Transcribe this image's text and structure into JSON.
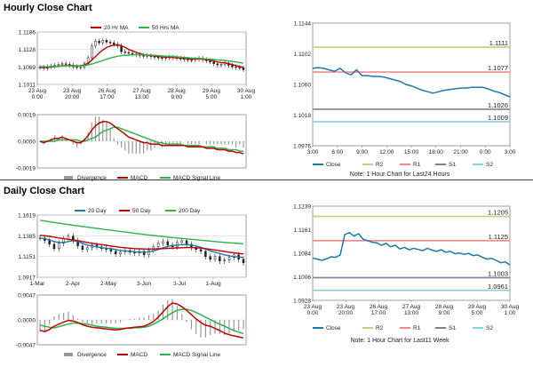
{
  "hourly_title": "Hourly Close Chart",
  "daily_title": "Daily Close Chart",
  "colors": {
    "close": "#1f77b4",
    "ma20": "#c00000",
    "ma50": "#2db34a",
    "ma200": "#2db34a",
    "macd": "#c00000",
    "signal": "#2db34a",
    "divergence": "#999999",
    "r2": "#b6d47a",
    "r1": "#f08b8b",
    "s1": "#7f7f9f",
    "s2": "#7fd6d6"
  },
  "chart_data": [
    {
      "id": "hourly-price",
      "type": "candlestick",
      "legend": [
        "20 Hr MA",
        "50 Hrs MA"
      ],
      "yticks": [
        1.1186,
        1.1128,
        1.1069,
        1.1011
      ],
      "ylim": [
        1.1011,
        1.1186
      ],
      "xtick_labels": [
        [
          "23 Aug",
          "0:00"
        ],
        [
          "23 Aug",
          "20:00"
        ],
        [
          "26 Aug",
          "17:00"
        ],
        [
          "27 Aug",
          "13:00"
        ],
        [
          "28 Aug",
          "9:00"
        ],
        [
          "29 Aug",
          "5:00"
        ],
        [
          "30 Aug",
          "1:00"
        ]
      ],
      "close": [
        1.1068,
        1.1065,
        1.107,
        1.1072,
        1.1075,
        1.1078,
        1.108,
        1.1078,
        1.1075,
        1.107,
        1.1068,
        1.1069,
        1.108,
        1.11,
        1.114,
        1.1155,
        1.115,
        1.1158,
        1.1152,
        1.115,
        1.1145,
        1.114,
        1.112,
        1.1118,
        1.1115,
        1.1112,
        1.111,
        1.1108,
        1.1105,
        1.1107,
        1.1104,
        1.1102,
        1.11,
        1.1098,
        1.11,
        1.1102,
        1.11,
        1.1098,
        1.1097,
        1.1095,
        1.1093,
        1.1092,
        1.1095,
        1.1098,
        1.1094,
        1.109,
        1.1086,
        1.108,
        1.1076,
        1.1078,
        1.1082,
        1.1075,
        1.107,
        1.1068,
        1.1066,
        1.106
      ],
      "ma20": [
        1.1068,
        1.1067,
        1.1068,
        1.1069,
        1.107,
        1.1072,
        1.1073,
        1.1074,
        1.1074,
        1.1074,
        1.1073,
        1.1073,
        1.1076,
        1.1082,
        1.1092,
        1.1104,
        1.1116,
        1.1126,
        1.1134,
        1.1139,
        1.1142,
        1.1143,
        1.114,
        1.1135,
        1.1128,
        1.1123,
        1.1118,
        1.1114,
        1.1111,
        1.1109,
        1.1107,
        1.1106,
        1.1104,
        1.1103,
        1.1102,
        1.1102,
        1.1101,
        1.11,
        1.1099,
        1.1098,
        1.1097,
        1.1096,
        1.1096,
        1.1096,
        1.1095,
        1.1094,
        1.1092,
        1.1089,
        1.1086,
        1.1084,
        1.1083,
        1.108,
        1.1077,
        1.1074,
        1.1071,
        1.1067
      ],
      "ma50": [
        1.107,
        1.107,
        1.107,
        1.1071,
        1.1071,
        1.1072,
        1.1072,
        1.1073,
        1.1073,
        1.1073,
        1.1073,
        1.1073,
        1.1074,
        1.1076,
        1.1079,
        1.1083,
        1.1087,
        1.1091,
        1.1095,
        1.1099,
        1.1102,
        1.1105,
        1.1107,
        1.1108,
        1.1109,
        1.111,
        1.111,
        1.111,
        1.111,
        1.1109,
        1.1109,
        1.1108,
        1.1107,
        1.1106,
        1.1105,
        1.1105,
        1.1104,
        1.1103,
        1.1102,
        1.1101,
        1.11,
        1.1099,
        1.1098,
        1.1098,
        1.1097,
        1.1096,
        1.1095,
        1.1094,
        1.1093,
        1.1092,
        1.1091,
        1.1089,
        1.1088,
        1.1086,
        1.1084,
        1.1082
      ]
    },
    {
      "id": "hourly-macd",
      "type": "macd",
      "legend": [
        "Divergence",
        "MACD",
        "MACD Signal Line"
      ],
      "yticks": [
        0.0019,
        0.0,
        -0.0019
      ],
      "yticks_labels": [
        "0.0019",
        "0.0000",
        "-0.0019"
      ],
      "ylim": [
        -0.0019,
        0.0019
      ],
      "macd": [
        0.0,
        -0.0001,
        0.0,
        0.0001,
        0.0002,
        0.0002,
        0.0003,
        0.0002,
        0.0001,
        0.0,
        -0.0001,
        -0.0001,
        0.0001,
        0.0004,
        0.0008,
        0.0011,
        0.0013,
        0.0014,
        0.0014,
        0.0013,
        0.0011,
        0.0009,
        0.0007,
        0.0005,
        0.0003,
        0.0002,
        0.0001,
        0.0,
        -0.0001,
        -0.0001,
        -0.0002,
        -0.0002,
        -0.0002,
        -0.0003,
        -0.0003,
        -0.0003,
        -0.0003,
        -0.0003,
        -0.0003,
        -0.0003,
        -0.0004,
        -0.0004,
        -0.0004,
        -0.0004,
        -0.0004,
        -0.0005,
        -0.0005,
        -0.0005,
        -0.0006,
        -0.0006,
        -0.0006,
        -0.0007,
        -0.0007,
        -0.0008,
        -0.0008,
        -0.0009
      ],
      "signal": [
        0.0,
        0.0,
        0.0,
        0.0,
        0.0,
        0.0001,
        0.0001,
        0.0001,
        0.0001,
        0.0001,
        0.0001,
        0.0,
        0.0,
        0.0001,
        0.0002,
        0.0003,
        0.0005,
        0.0007,
        0.0008,
        0.0009,
        0.001,
        0.001,
        0.0009,
        0.0008,
        0.0007,
        0.0006,
        0.0005,
        0.0004,
        0.0003,
        0.0002,
        0.0001,
        0.0,
        -0.0001,
        -0.0001,
        -0.0002,
        -0.0002,
        -0.0002,
        -0.0002,
        -0.0002,
        -0.0003,
        -0.0003,
        -0.0003,
        -0.0003,
        -0.0003,
        -0.0004,
        -0.0004,
        -0.0004,
        -0.0004,
        -0.0005,
        -0.0005,
        -0.0005,
        -0.0006,
        -0.0006,
        -0.0006,
        -0.0007,
        -0.0007
      ]
    },
    {
      "id": "hourly-levels",
      "type": "line",
      "yticks": [
        1.1144,
        1.1102,
        1.106,
        1.1018,
        1.0976
      ],
      "ylim": [
        1.0976,
        1.1144
      ],
      "xtick_labels": [
        "3:00",
        "6:00",
        "9:00",
        "12:00",
        "15:00",
        "18:00",
        "21:00",
        "0:00",
        "3:00"
      ],
      "close": [
        1.1082,
        1.1083,
        1.1082,
        1.108,
        1.1078,
        1.1082,
        1.1076,
        1.1073,
        1.108,
        1.1072,
        1.1072,
        1.1071,
        1.1071,
        1.107,
        1.1068,
        1.1066,
        1.1064,
        1.106,
        1.1058,
        1.1055,
        1.1052,
        1.105,
        1.1048,
        1.105,
        1.1052,
        1.1053,
        1.1054,
        1.1055,
        1.1055,
        1.1056,
        1.1056,
        1.1056,
        1.1054,
        1.1051,
        1.1049,
        1.1046,
        1.1043
      ],
      "levels": [
        {
          "name": "R2",
          "value": 1.1111,
          "label": "1.1111"
        },
        {
          "name": "R1",
          "value": 1.1077,
          "label": "1.1077"
        },
        {
          "name": "S1",
          "value": 1.1026,
          "label": "1.1026"
        },
        {
          "name": "S2",
          "value": 1.1009,
          "label": "1.1009"
        }
      ],
      "legend": [
        "Close",
        "R2",
        "R1",
        "S1",
        "S2"
      ],
      "note": "Note: 1 Hour Chart for Last24 Hours"
    },
    {
      "id": "daily-price",
      "type": "candlestick",
      "legend": [
        "20 Day",
        "50 Day",
        "200 Day"
      ],
      "yticks": [
        1.1619,
        1.1385,
        1.1151,
        1.0917
      ],
      "ylim": [
        1.0917,
        1.1619
      ],
      "xtick_labels": [
        "1-Mar",
        "2-Apr",
        "2-May",
        "3-Jun",
        "3-Jul",
        "1-Aug"
      ],
      "close": [
        1.136,
        1.133,
        1.129,
        1.124,
        1.13,
        1.135,
        1.138,
        1.133,
        1.127,
        1.123,
        1.125,
        1.128,
        1.126,
        1.124,
        1.123,
        1.121,
        1.118,
        1.12,
        1.122,
        1.12,
        1.119,
        1.121,
        1.117,
        1.122,
        1.126,
        1.13,
        1.132,
        1.128,
        1.126,
        1.131,
        1.133,
        1.129,
        1.125,
        1.123,
        1.121,
        1.115,
        1.112,
        1.115,
        1.11,
        1.111,
        1.114,
        1.117,
        1.112,
        1.108
      ],
      "ma20": [
        1.136,
        1.135,
        1.134,
        1.132,
        1.131,
        1.131,
        1.132,
        1.133,
        1.132,
        1.13,
        1.128,
        1.127,
        1.126,
        1.125,
        1.1245,
        1.124,
        1.123,
        1.122,
        1.1215,
        1.121,
        1.1205,
        1.12,
        1.12,
        1.1205,
        1.1215,
        1.123,
        1.125,
        1.1265,
        1.1275,
        1.128,
        1.1285,
        1.1285,
        1.128,
        1.127,
        1.1255,
        1.1235,
        1.1215,
        1.12,
        1.1185,
        1.117,
        1.116,
        1.115,
        1.1145,
        1.114
      ],
      "ma50": [
        1.139,
        1.1385,
        1.1378,
        1.137,
        1.136,
        1.1352,
        1.1345,
        1.1338,
        1.133,
        1.132,
        1.131,
        1.13,
        1.1292,
        1.1285,
        1.1278,
        1.127,
        1.1262,
        1.1255,
        1.125,
        1.1245,
        1.124,
        1.1238,
        1.1236,
        1.1235,
        1.1236,
        1.1238,
        1.124,
        1.1243,
        1.1245,
        1.1248,
        1.125,
        1.1252,
        1.1252,
        1.125,
        1.1246,
        1.124,
        1.1232,
        1.1225,
        1.1216,
        1.1208,
        1.12,
        1.1193,
        1.1186,
        1.118
      ],
      "ma200": [
        1.156,
        1.1552,
        1.1544,
        1.1536,
        1.1528,
        1.152,
        1.1512,
        1.1504,
        1.1497,
        1.149,
        1.1483,
        1.1476,
        1.1469,
        1.1462,
        1.1455,
        1.1448,
        1.1441,
        1.1434,
        1.1427,
        1.142,
        1.1413,
        1.1406,
        1.14,
        1.1394,
        1.1388,
        1.1382,
        1.1376,
        1.137,
        1.1365,
        1.136,
        1.1355,
        1.135,
        1.1345,
        1.134,
        1.1335,
        1.133,
        1.1325,
        1.132,
        1.1315,
        1.131,
        1.1306,
        1.1302,
        1.1298,
        1.1295
      ]
    },
    {
      "id": "daily-macd",
      "type": "macd",
      "legend": [
        "Divergence",
        "MACD",
        "MACD Signal Line"
      ],
      "yticks": [
        0.0047,
        0.0,
        -0.0047
      ],
      "yticks_labels": [
        "0.0047",
        "0.0000",
        "-0.0047"
      ],
      "ylim": [
        -0.0047,
        0.0047
      ],
      "macd": [
        -0.002,
        -0.0022,
        -0.0018,
        -0.0012,
        -0.0008,
        -0.0004,
        -0.0001,
        -0.0002,
        -0.0005,
        -0.0009,
        -0.0012,
        -0.0014,
        -0.0015,
        -0.0016,
        -0.0017,
        -0.0018,
        -0.0019,
        -0.0018,
        -0.0016,
        -0.0015,
        -0.0014,
        -0.0013,
        -0.0012,
        -0.0008,
        -0.0003,
        0.0005,
        0.0015,
        0.0025,
        0.0032,
        0.003,
        0.0025,
        0.0018,
        0.001,
        0.0002,
        -0.0005,
        -0.001,
        -0.0012,
        -0.0016,
        -0.002,
        -0.0025,
        -0.0028,
        -0.003,
        -0.0032,
        -0.0034
      ],
      "signal": [
        -0.001,
        -0.0012,
        -0.0014,
        -0.0015,
        -0.0013,
        -0.001,
        -0.0008,
        -0.0006,
        -0.0006,
        -0.0007,
        -0.0008,
        -0.001,
        -0.0012,
        -0.0013,
        -0.0014,
        -0.0015,
        -0.0016,
        -0.0016,
        -0.0016,
        -0.0016,
        -0.0015,
        -0.0015,
        -0.0014,
        -0.0012,
        -0.0008,
        -0.0003,
        0.0002,
        0.0008,
        0.0014,
        0.0018,
        0.002,
        0.002,
        0.0018,
        0.0014,
        0.001,
        0.0005,
        0.0001,
        -0.0004,
        -0.0008,
        -0.0012,
        -0.0016,
        -0.002,
        -0.0023,
        -0.0026
      ]
    },
    {
      "id": "daily-levels",
      "type": "line",
      "yticks": [
        1.1239,
        1.1161,
        1.1084,
        1.1006,
        1.0928
      ],
      "ylim": [
        1.0928,
        1.1239
      ],
      "xtick_labels": [
        [
          "23 Aug",
          "0:00"
        ],
        [
          "23 Aug",
          "20:00"
        ],
        [
          "26 Aug",
          "17:00"
        ],
        [
          "27 Aug",
          "13:00"
        ],
        [
          "28 Aug",
          "9:00"
        ],
        [
          "29 Aug",
          "5:00"
        ],
        [
          "30 Aug",
          "1:00"
        ]
      ],
      "close": [
        1.1068,
        1.1064,
        1.106,
        1.1065,
        1.1072,
        1.107,
        1.1078,
        1.1145,
        1.1152,
        1.114,
        1.1148,
        1.113,
        1.1125,
        1.112,
        1.1118,
        1.111,
        1.1116,
        1.1105,
        1.111,
        1.1098,
        1.1103,
        1.1095,
        1.11,
        1.1096,
        1.1092,
        1.11,
        1.1094,
        1.109,
        1.1095,
        1.1087,
        1.109,
        1.1082,
        1.1084,
        1.108,
        1.1083,
        1.1076,
        1.1078,
        1.107,
        1.1064,
        1.1067,
        1.106,
        1.1052,
        1.1055,
        1.1045
      ],
      "levels": [
        {
          "name": "R2",
          "value": 1.1205,
          "label": "1.1205"
        },
        {
          "name": "R1",
          "value": 1.1125,
          "label": "1.1125"
        },
        {
          "name": "S1",
          "value": 1.1003,
          "label": "1.1003"
        },
        {
          "name": "S2",
          "value": 1.0961,
          "label": "1.0961"
        }
      ],
      "legend": [
        "Close",
        "R2",
        "R1",
        "S1",
        "S2"
      ],
      "note": "Note: 1 Hour Chart for Last11 Week"
    }
  ]
}
